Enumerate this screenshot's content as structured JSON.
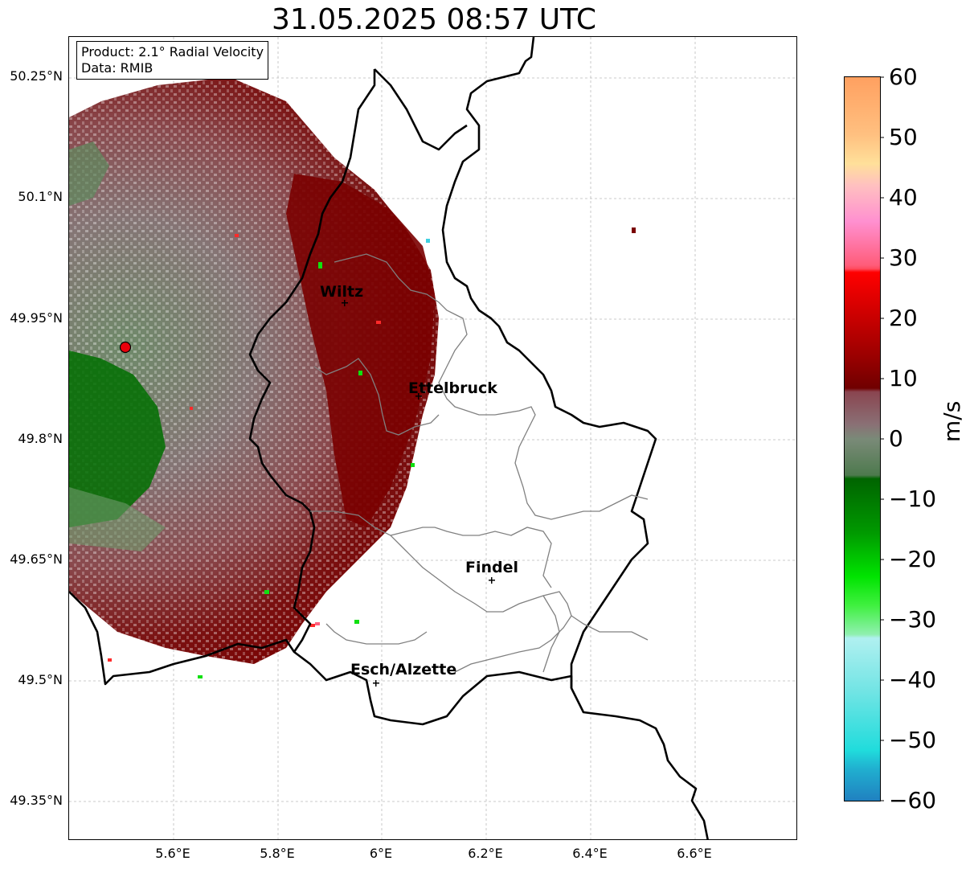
{
  "title": "31.05.2025 08:57 UTC",
  "info": {
    "product": "Product: 2.1° Radial Velocity",
    "data": "Data: RMIB"
  },
  "lat_ticks": [
    "50.25°N",
    "50.1°N",
    "49.95°N",
    "49.8°N",
    "49.65°N",
    "49.5°N",
    "49.35°N"
  ],
  "lon_ticks": [
    "5.6°E",
    "5.8°E",
    "6°E",
    "6.2°E",
    "6.4°E",
    "6.6°E"
  ],
  "cities": [
    {
      "name": "Wiltz"
    },
    {
      "name": "Ettelbruck"
    },
    {
      "name": "Findel"
    },
    {
      "name": "Esch/Alzette"
    }
  ],
  "colorbar": {
    "label": "m/s",
    "ticks": [
      "60",
      "50",
      "40",
      "30",
      "20",
      "10",
      "0",
      "−10",
      "−20",
      "−30",
      "−40",
      "−50",
      "−60"
    ],
    "min": -60,
    "max": 60
  },
  "colors": {
    "border": "#000000",
    "admin_border": "#808080",
    "radar_site": "#e8000b"
  }
}
